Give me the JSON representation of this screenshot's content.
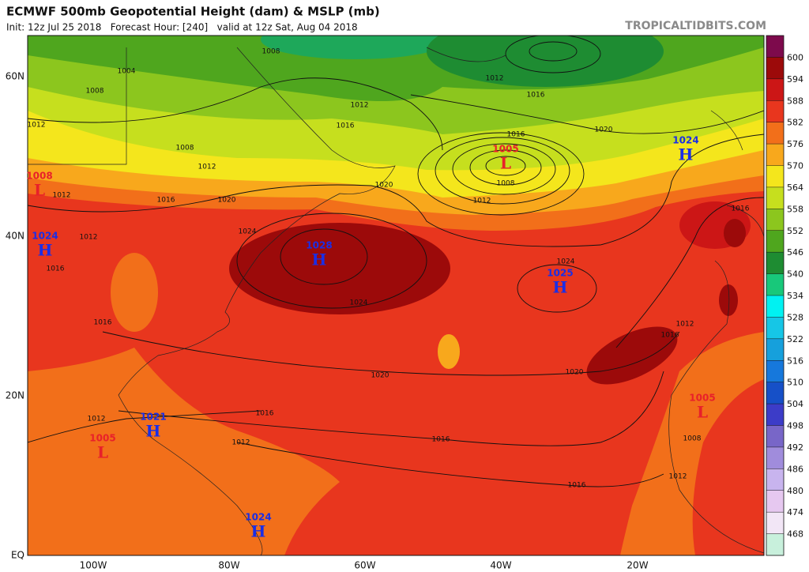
{
  "header": {
    "title": "ECMWF 500mb Geopotential Height (dam) & MSLP (mb)",
    "subtitle": "Init: 12z Jul 25 2018   Forecast Hour: [240]   valid at 12z Sat, Aug 04 2018",
    "site": "TROPICALTIDBITS.COM"
  },
  "map": {
    "lat_labels": [
      "60N",
      "40N",
      "20N",
      "EQ"
    ],
    "lon_labels": [
      "100W",
      "80W",
      "60W",
      "40W",
      "20W"
    ],
    "pressure_centers": [
      {
        "letter": "L",
        "value": 1008
      },
      {
        "letter": "H",
        "value": 1024
      },
      {
        "letter": "H",
        "value": 1028
      },
      {
        "letter": "L",
        "value": 1005
      },
      {
        "letter": "H",
        "value": 1024
      },
      {
        "letter": "H",
        "value": 1025
      },
      {
        "letter": "L",
        "value": 1005
      },
      {
        "letter": "H",
        "value": 1021
      },
      {
        "letter": "L",
        "value": 1005
      },
      {
        "letter": "H",
        "value": 1024
      }
    ],
    "isobar_labels": [
      1008,
      1004,
      1008,
      1012,
      1008,
      1012,
      1016,
      1012,
      1020,
      1012,
      1016,
      1012,
      1016,
      1020,
      1016,
      1008,
      1012,
      1020,
      1024,
      1012,
      1016,
      1024,
      1024,
      1016,
      1020,
      1020,
      1012,
      1016,
      1016,
      1012,
      1016,
      1012,
      1016,
      1016,
      1008,
      1012
    ]
  },
  "colorbar": {
    "levels": [
      600,
      594,
      588,
      582,
      576,
      570,
      564,
      558,
      552,
      546,
      540,
      534,
      528,
      522,
      516,
      510,
      504,
      498,
      492,
      486,
      480,
      474,
      468
    ],
    "colors": [
      "#7d0a4c",
      "#9c0a0a",
      "#cc1616",
      "#e8361e",
      "#f26f1a",
      "#f8a81c",
      "#f4e61c",
      "#c6df1e",
      "#8cc61e",
      "#4fa61e",
      "#1e8c32",
      "#18c87a",
      "#00f2f2",
      "#16c6e6",
      "#16a0dc",
      "#1678dc",
      "#1650c8",
      "#3c3cc8",
      "#7866c8",
      "#a08cdc",
      "#c8b4ee",
      "#e6c8f0",
      "#f2e6f6",
      "#c8f0dc"
    ]
  }
}
